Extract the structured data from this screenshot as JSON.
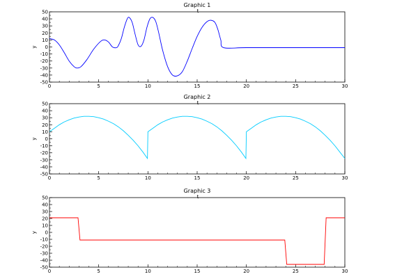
{
  "chart_data": [
    {
      "type": "line",
      "title": "Graphic 1",
      "xlabel": "t",
      "ylabel": "y",
      "xlim": [
        0,
        30
      ],
      "ylim": [
        -50,
        50
      ],
      "xticks": [
        0,
        5,
        10,
        15,
        20,
        25,
        30
      ],
      "yticks": [
        -50,
        -40,
        -30,
        -20,
        -10,
        0,
        10,
        20,
        30,
        40,
        50
      ],
      "grid": false,
      "color": "#0000ff",
      "series": [
        {
          "x": [
            0,
            0.5,
            1,
            1.5,
            2,
            2.5,
            2.8,
            3.2,
            3.8,
            4.5,
            5.2,
            5.6,
            6.0,
            6.4,
            6.8,
            7.0,
            7.3,
            7.6,
            7.9,
            8.1,
            8.4,
            8.7,
            9.0,
            9.3,
            9.6,
            9.9,
            10.2,
            10.5,
            10.8,
            11.1,
            11.5,
            12.0,
            12.5,
            13.0,
            13.5,
            14.0,
            14.5,
            15.0,
            15.5,
            16.0,
            16.4,
            16.8,
            17.1,
            17.4,
            17.7,
            20,
            25,
            30
          ],
          "y": [
            12,
            10,
            3,
            -8,
            -20,
            -28,
            -30,
            -28,
            -18,
            -3,
            8,
            10,
            7,
            0,
            -1,
            2,
            12,
            28,
            40,
            42,
            35,
            18,
            3,
            1,
            10,
            28,
            40,
            42,
            36,
            20,
            -5,
            -28,
            -40,
            -41,
            -35,
            -20,
            -2,
            15,
            28,
            36,
            38,
            35,
            25,
            10,
            -1,
            -1,
            -1,
            -1
          ]
        }
      ]
    },
    {
      "type": "line",
      "title": "Graphic 2",
      "xlabel": "t",
      "ylabel": "y",
      "xlim": [
        0,
        30
      ],
      "ylim": [
        -50,
        50
      ],
      "xticks": [
        0,
        5,
        10,
        15,
        20,
        25,
        30
      ],
      "yticks": [
        -50,
        -40,
        -30,
        -20,
        -10,
        0,
        10,
        20,
        30,
        40,
        50
      ],
      "grid": false,
      "color": "#00ccff",
      "series": [
        {
          "x": [
            0,
            0.5,
            1,
            1.5,
            2,
            2.5,
            3,
            3.5,
            4,
            4.5,
            5,
            5.5,
            6,
            6.5,
            7,
            7.5,
            8,
            8.5,
            9,
            9.5,
            9.95,
            10.0,
            10.5,
            11,
            11.5,
            12,
            12.5,
            13,
            13.5,
            14,
            14.5,
            15,
            15.5,
            16,
            16.5,
            17,
            17.5,
            18,
            18.5,
            19,
            19.5,
            19.95,
            20.0,
            20.5,
            21,
            21.5,
            22,
            22.5,
            23,
            23.5,
            24,
            24.5,
            25,
            25.5,
            26,
            26.5,
            27,
            27.5,
            28,
            28.5,
            29,
            29.5,
            30
          ],
          "y": [
            10,
            15,
            20,
            24,
            27,
            29.5,
            31,
            32,
            32,
            31.5,
            30,
            28,
            25,
            21.5,
            17,
            11.5,
            5,
            -2,
            -10,
            -19,
            -28,
            10,
            15,
            20,
            24,
            27,
            29.5,
            31,
            32,
            32,
            31.5,
            30,
            28,
            25,
            21.5,
            17,
            11.5,
            5,
            -2,
            -10,
            -19,
            -28,
            10,
            15,
            20,
            24,
            27,
            29.5,
            31,
            32,
            32,
            31.5,
            30,
            28,
            25,
            21.5,
            17,
            11.5,
            5,
            -2,
            -10,
            -19,
            -28
          ]
        }
      ]
    },
    {
      "type": "line",
      "title": "Graphic 3",
      "xlabel": "t",
      "ylabel": "y",
      "xlim": [
        0,
        30
      ],
      "ylim": [
        -50,
        50
      ],
      "xticks": [
        0,
        5,
        10,
        15,
        20,
        25,
        30
      ],
      "yticks": [
        -50,
        -40,
        -30,
        -20,
        -10,
        0,
        10,
        20,
        30,
        40,
        50
      ],
      "grid": false,
      "color": "#ff0000",
      "series": [
        {
          "x": [
            0,
            2.9,
            3.1,
            23.9,
            24.1,
            27.9,
            28.1,
            30
          ],
          "y": [
            21,
            21,
            -11,
            -11,
            -46,
            -46,
            21,
            21
          ]
        }
      ]
    }
  ]
}
